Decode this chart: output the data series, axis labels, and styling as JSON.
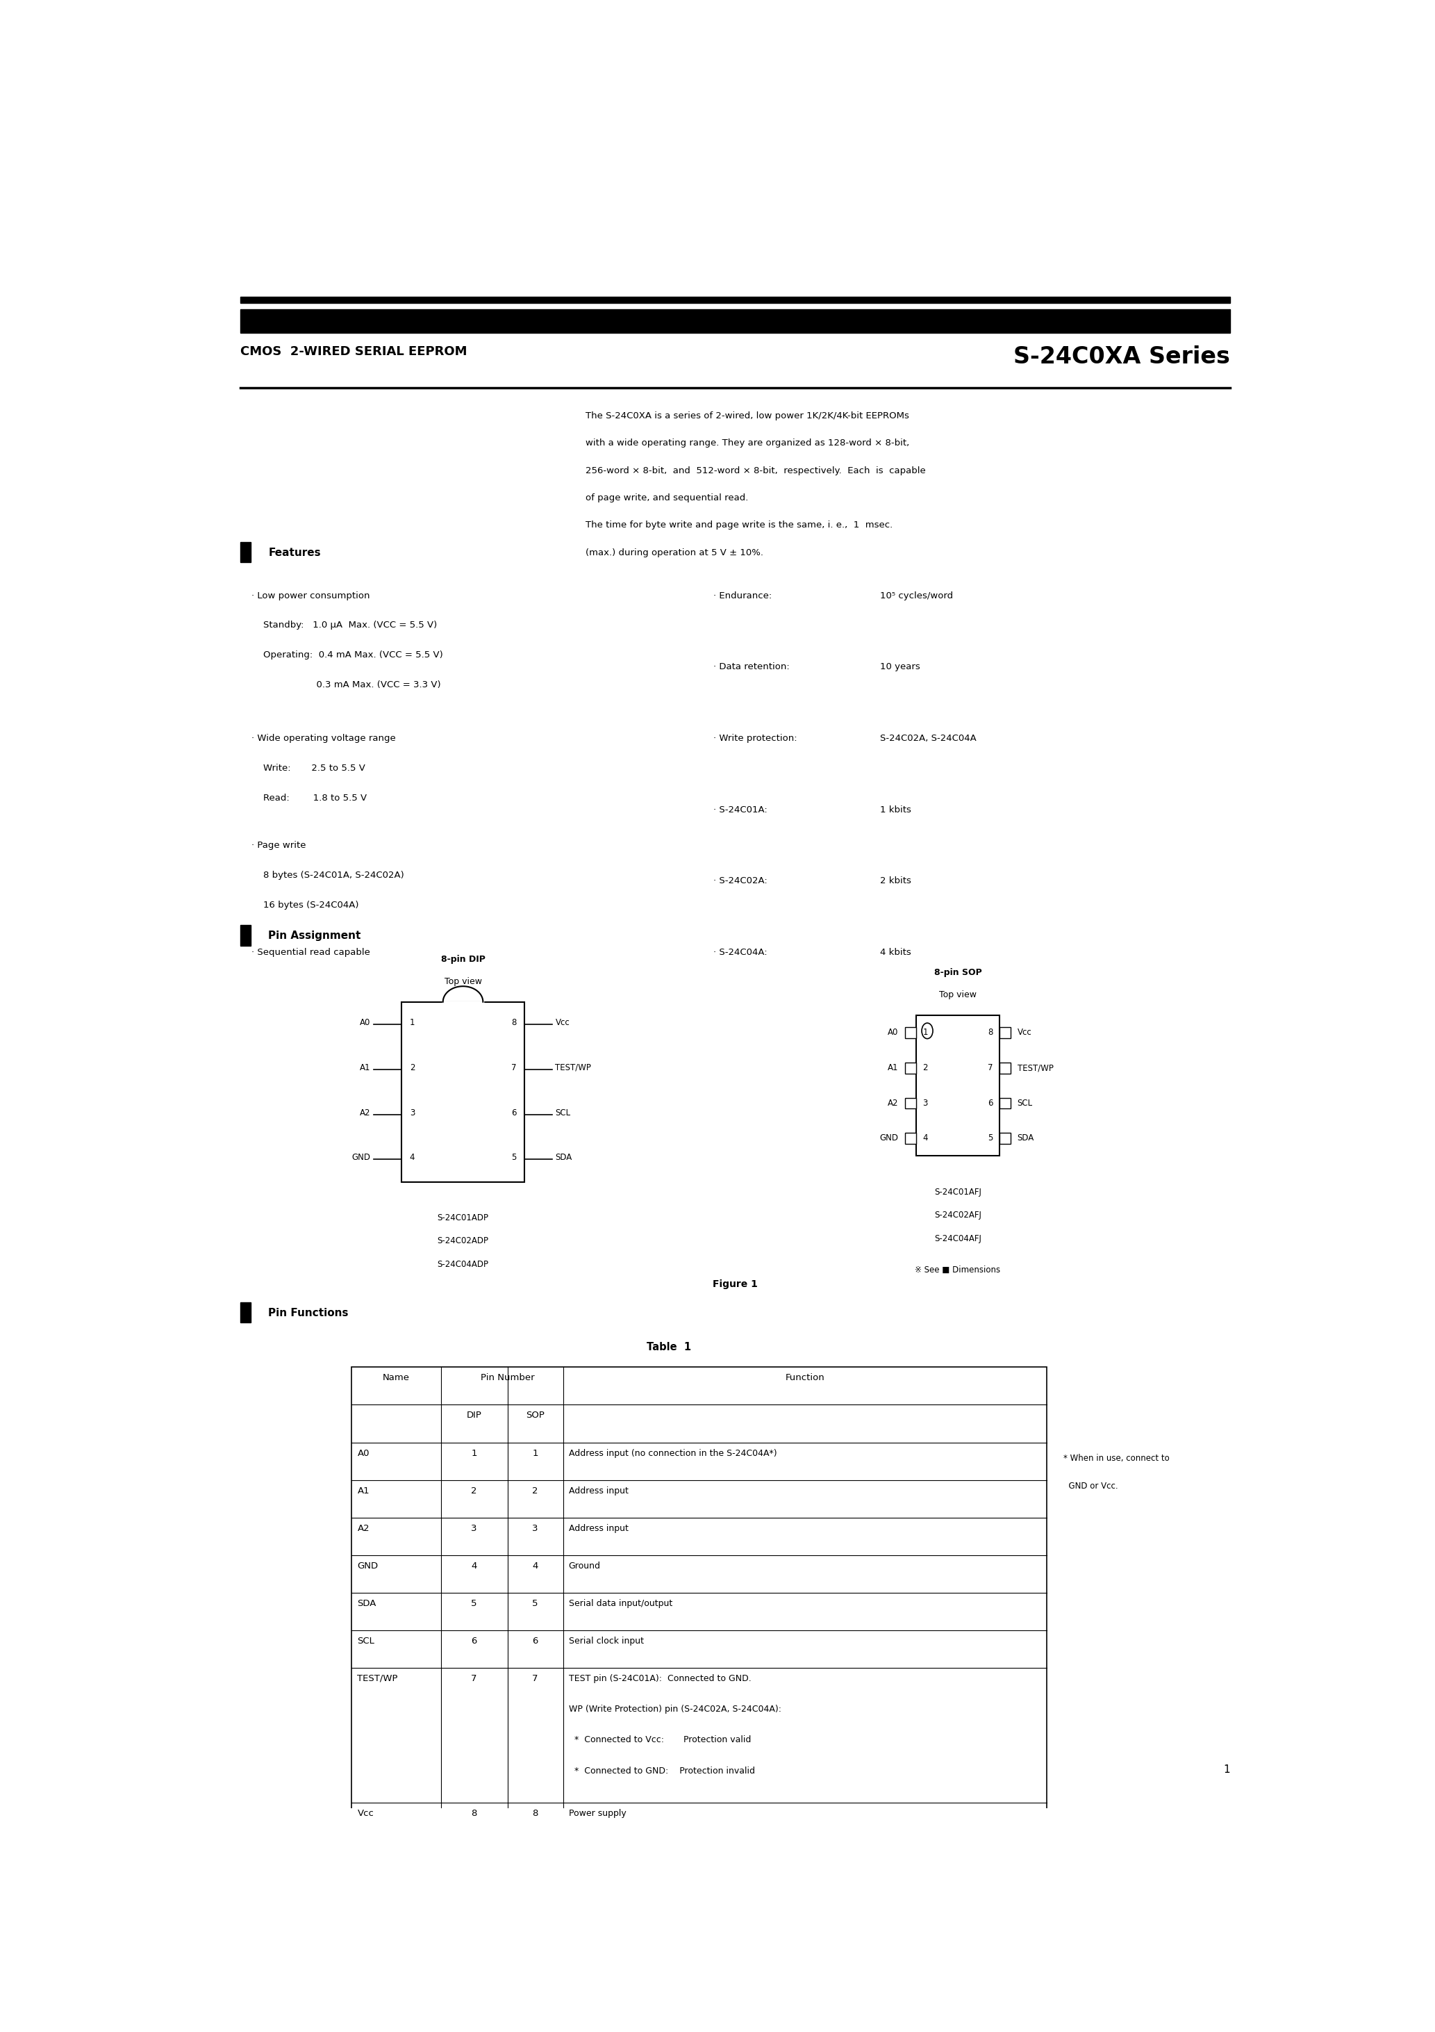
{
  "bg_color": "#ffffff",
  "header_title_left": "CMOS  2-WIRED SERIAL EEPROM",
  "header_title_right": "S-24C0XA Series",
  "intro_text": [
    "The S-24C0XA is a series of 2-wired, low power 1K/2K/4K-bit EEPROMs",
    "with a wide operating range. They are organized as 128-word × 8-bit,",
    "256-word × 8-bit,  and  512-word × 8-bit,  respectively.  Each  is  capable",
    "of page write, and sequential read.",
    "The time for byte write and page write is the same, i. e.,  1  msec.",
    "(max.) during operation at 5 V ± 10%."
  ],
  "section_features": "Features",
  "feat_left_lines": [
    [
      "· Low power consumption",
      0
    ],
    [
      "    Standby:   1.0 μA  Max. (VCC = 5.5 V)",
      1
    ],
    [
      "    Operating:  0.4 mA Max. (VCC = 5.5 V)",
      2
    ],
    [
      "                      0.3 mA Max. (VCC = 3.3 V)",
      3
    ],
    [
      "· Wide operating voltage range",
      4.8
    ],
    [
      "    Write:       2.5 to 5.5 V",
      5.8
    ],
    [
      "    Read:        1.8 to 5.5 V",
      6.8
    ],
    [
      "· Page write",
      8.4
    ],
    [
      "    8 bytes (S-24C01A, S-24C02A)",
      9.4
    ],
    [
      "    16 bytes (S-24C04A)",
      10.4
    ],
    [
      "· Sequential read capable",
      12.0
    ]
  ],
  "feat_right_labels": [
    "· Endurance:",
    "· Data retention:",
    "· Write protection:",
    "· S-24C01A:",
    "· S-24C02A:",
    "· S-24C04A:"
  ],
  "feat_right_values": [
    "10⁵ cycles/word",
    "10 years",
    "S-24C02A, S-24C04A",
    "1 kbits",
    "2 kbits",
    "4 kbits"
  ],
  "feat_right_idxs": [
    0,
    2.4,
    4.8,
    7.2,
    9.6,
    12.0
  ],
  "section_pin": "Pin Assignment",
  "dip_left_pins": [
    "A0",
    "A1",
    "A2",
    "GND"
  ],
  "dip_left_nums": [
    "1",
    "2",
    "3",
    "4"
  ],
  "dip_right_pins": [
    "Vᴄᴄ",
    "TEST/WP",
    "SCL",
    "SDA"
  ],
  "dip_right_nums": [
    "8",
    "7",
    "6",
    "5"
  ],
  "dip_parts": [
    "S-24C01ADP",
    "S-24C02ADP",
    "S-24C04ADP"
  ],
  "sop_left_pins": [
    "A0",
    "A1",
    "A2",
    "GND"
  ],
  "sop_left_nums": [
    "1",
    "2",
    "3",
    "4"
  ],
  "sop_right_pins": [
    "Vᴄᴄ",
    "TEST/WP",
    "SCL",
    "SDA"
  ],
  "sop_right_nums": [
    "8",
    "7",
    "6",
    "5"
  ],
  "sop_parts": [
    "S-24C01AFJ",
    "S-24C02AFJ",
    "S-24C04AFJ"
  ],
  "figure_caption": "Figure 1",
  "section_pin_func": "Pin Functions",
  "table_caption": "Table  1",
  "table_rows": [
    [
      "A0",
      "1",
      "1",
      "Address input (no connection in the S-24C04A*)"
    ],
    [
      "A1",
      "2",
      "2",
      "Address input"
    ],
    [
      "A2",
      "3",
      "3",
      "Address input"
    ],
    [
      "GND",
      "4",
      "4",
      "Ground"
    ],
    [
      "SDA",
      "5",
      "5",
      "Serial data input/output"
    ],
    [
      "SCL",
      "6",
      "6",
      "Serial clock input"
    ],
    [
      "TEST/WP",
      "7",
      "7",
      "TEST pin (S-24C01A):  Connected to GND.\nWP (Write Protection) pin (S-24C02A, S-24C04A):\n  *  Connected to Vcc:       Protection valid\n  *  Connected to GND:    Protection invalid"
    ],
    [
      "Vᴄᴄ",
      "8",
      "8",
      "Power supply"
    ]
  ],
  "page_number": "1"
}
